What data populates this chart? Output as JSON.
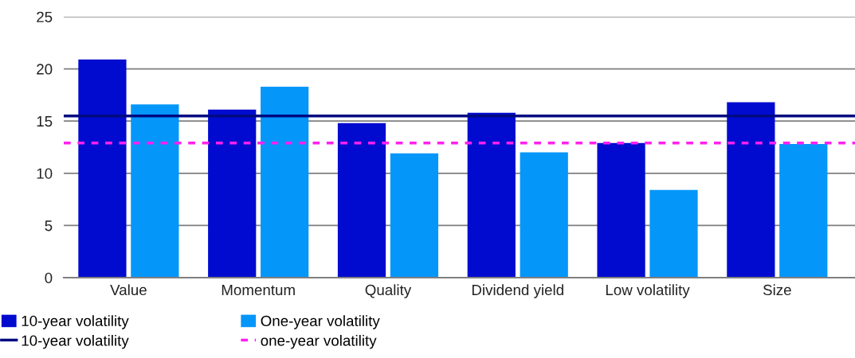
{
  "chart_data": {
    "type": "bar",
    "categories": [
      "Value",
      "Momentum",
      "Quality",
      "Dividend yield",
      "Low volatility",
      "Size"
    ],
    "series": [
      {
        "name": "10-year volatility",
        "color": "#000bcf",
        "values": [
          20.9,
          16.1,
          14.8,
          15.8,
          12.9,
          16.8
        ]
      },
      {
        "name": "One-year volatility",
        "color": "#0596fa",
        "values": [
          16.6,
          18.3,
          11.9,
          12.0,
          8.4,
          12.8
        ]
      }
    ],
    "ref_lines": [
      {
        "axis": "y",
        "value": 15.5,
        "label": "10-year volatility",
        "color": "#000a80",
        "line_style": "solid"
      },
      {
        "axis": "y",
        "value": 12.9,
        "label": "one-year volatility",
        "color": "#ff1ff0",
        "line_style": "dashed"
      }
    ],
    "ylim": [
      0,
      25
    ],
    "yticks": [
      0,
      5,
      10,
      15,
      20,
      25
    ],
    "grid": "y",
    "legend": "bottom left"
  }
}
